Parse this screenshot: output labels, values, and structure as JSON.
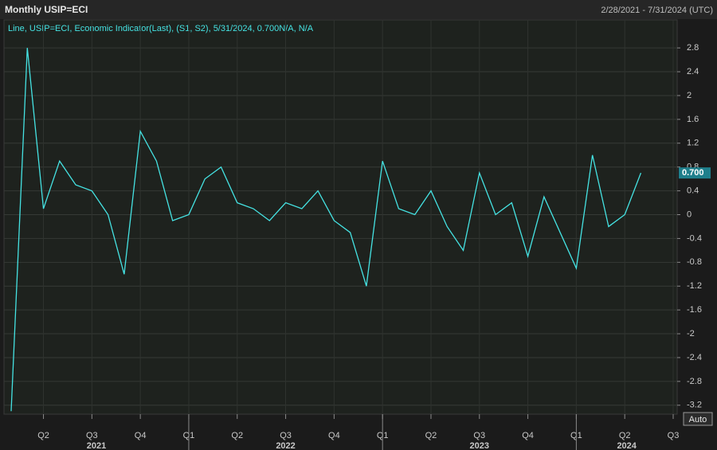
{
  "chart_data": {
    "type": "line",
    "title": "Monthly USIP=ECI",
    "date_range": "2/28/2021 - 7/31/2024 (UTC)",
    "legend_text": "Line, USIP=ECI, Economic Indicator(Last), (S1, S2), 5/31/2024, 0.700N/A, N/A",
    "button": "Auto",
    "x": [
      "2021-02",
      "2021-03",
      "2021-04",
      "2021-05",
      "2021-06",
      "2021-07",
      "2021-08",
      "2021-09",
      "2021-10",
      "2021-11",
      "2021-12",
      "2022-01",
      "2022-02",
      "2022-03",
      "2022-04",
      "2022-05",
      "2022-06",
      "2022-07",
      "2022-08",
      "2022-09",
      "2022-10",
      "2022-11",
      "2022-12",
      "2023-01",
      "2023-02",
      "2023-03",
      "2023-04",
      "2023-05",
      "2023-06",
      "2023-07",
      "2023-08",
      "2023-09",
      "2023-10",
      "2023-11",
      "2023-12",
      "2024-01",
      "2024-02",
      "2024-03",
      "2024-04",
      "2024-05"
    ],
    "series": [
      {
        "name": "USIP=ECI",
        "color": "#45e3e3",
        "values": [
          -3.3,
          2.8,
          0.1,
          0.9,
          0.5,
          0.4,
          0.0,
          -1.0,
          1.4,
          0.9,
          -0.1,
          0.0,
          0.6,
          0.8,
          0.2,
          0.1,
          -0.1,
          0.2,
          0.1,
          0.4,
          -0.1,
          -0.3,
          -1.2,
          0.9,
          0.1,
          0.0,
          0.4,
          -0.2,
          -0.6,
          0.7,
          0.0,
          0.2,
          -0.7,
          0.3,
          -0.3,
          -0.9,
          1.0,
          -0.2,
          0.0,
          0.7
        ],
        "value_labels": [
          null,
          null,
          null,
          null,
          null,
          null,
          null,
          null,
          null,
          null,
          null,
          null,
          null,
          null,
          null,
          null,
          null,
          null,
          null,
          null,
          null,
          null,
          null,
          null,
          null,
          null,
          null,
          null,
          null,
          null,
          null,
          null,
          null,
          null,
          null,
          null,
          null,
          null,
          null,
          "0.700"
        ]
      }
    ],
    "xlim": [
      "2021-02",
      "2024-07"
    ],
    "xticks": [
      {
        "value": "2021-04",
        "label": "Q2"
      },
      {
        "value": "2021-07",
        "label": "Q3"
      },
      {
        "value": "2021-10",
        "label": "Q4"
      },
      {
        "value": "2022-01",
        "label": "Q1"
      },
      {
        "value": "2022-04",
        "label": "Q2"
      },
      {
        "value": "2022-07",
        "label": "Q3"
      },
      {
        "value": "2022-10",
        "label": "Q4"
      },
      {
        "value": "2023-01",
        "label": "Q1"
      },
      {
        "value": "2023-04",
        "label": "Q2"
      },
      {
        "value": "2023-07",
        "label": "Q3"
      },
      {
        "value": "2023-10",
        "label": "Q4"
      },
      {
        "value": "2024-01",
        "label": "Q1"
      },
      {
        "value": "2024-04",
        "label": "Q2"
      },
      {
        "value": "2024-07",
        "label": "Q3"
      }
    ],
    "year_ticks": [
      {
        "value": "2021-01",
        "label": "2021"
      },
      {
        "value": "2022-01",
        "label": "2022"
      },
      {
        "value": "2023-01",
        "label": "2023"
      },
      {
        "value": "2024-01",
        "label": "2024"
      }
    ],
    "ylim": [
      -3.35,
      3.27
    ],
    "yticks": [
      2.8,
      2.4,
      2,
      1.6,
      1.2,
      0.8,
      0.4,
      0,
      -0.4,
      -0.8,
      -1.2,
      -1.6,
      -2,
      -2.4,
      -2.8,
      -3.2
    ],
    "grid": true
  }
}
